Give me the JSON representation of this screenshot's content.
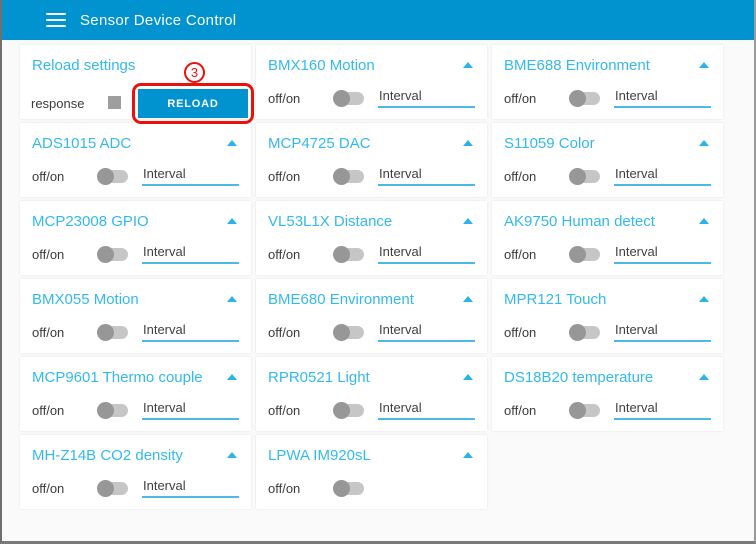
{
  "header": {
    "title": "Sensor Device Control",
    "menu_icon": "hamburger-icon"
  },
  "labels": {
    "toggle": "off/on",
    "interval_placeholder": "Interval",
    "collapse_icon": "caret-up-icon"
  },
  "reload_panel": {
    "title": "Reload settings",
    "response_label": "response",
    "button_label": "RELOAD"
  },
  "annotation": {
    "step_number": "3"
  },
  "sensor_panels": [
    {
      "title": "BMX160 Motion",
      "has_interval": true
    },
    {
      "title": "BME688 Environment",
      "has_interval": true
    },
    {
      "title": "ADS1015 ADC",
      "has_interval": true
    },
    {
      "title": "MCP4725 DAC",
      "has_interval": true
    },
    {
      "title": "S11059 Color",
      "has_interval": true
    },
    {
      "title": "MCP23008 GPIO",
      "has_interval": true
    },
    {
      "title": "VL53L1X Distance",
      "has_interval": true
    },
    {
      "title": "AK9750 Human detect",
      "has_interval": true
    },
    {
      "title": "BMX055 Motion",
      "has_interval": true
    },
    {
      "title": "BME680 Environment",
      "has_interval": true
    },
    {
      "title": "MPR121 Touch",
      "has_interval": true
    },
    {
      "title": "MCP9601 Thermo couple",
      "has_interval": true
    },
    {
      "title": "RPR0521 Light",
      "has_interval": true
    },
    {
      "title": "DS18B20 temperature",
      "has_interval": true
    },
    {
      "title": "MH-Z14B CO2 density",
      "has_interval": true
    },
    {
      "title": "LPWA IM920sL",
      "has_interval": false
    }
  ],
  "colors": {
    "header_bg": "#0093d0",
    "button_bg": "#0093d0",
    "panel_title": "#33b9ef",
    "accent": "#29b2ee",
    "accent_underline": "#4cb8e8",
    "annotation_red": "#e8110d",
    "page_bg": "#fafafa"
  }
}
